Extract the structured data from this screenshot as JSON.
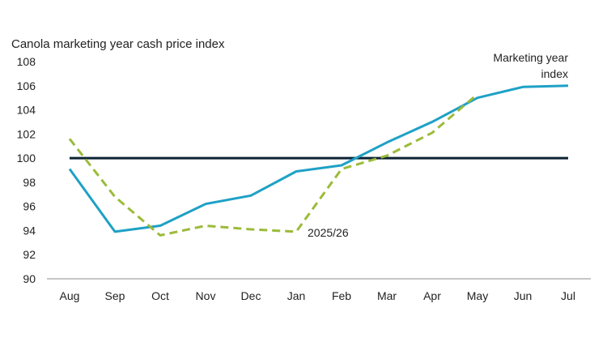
{
  "chart_data": {
    "type": "line",
    "title": "Canola marketing year cash price index",
    "xlabel": "",
    "ylabel": "",
    "categories": [
      "Aug",
      "Sep",
      "Oct",
      "Nov",
      "Dec",
      "Jan",
      "Feb",
      "Mar",
      "Apr",
      "May",
      "Jun",
      "Jul"
    ],
    "ylim": [
      90,
      108
    ],
    "yticks": [
      90,
      92,
      94,
      96,
      98,
      100,
      102,
      104,
      106,
      108
    ],
    "grid": false,
    "series": [
      {
        "name": "Marketing year index",
        "style": "solid",
        "color": "#1ea1c6",
        "values": [
          99.1,
          93.9,
          94.4,
          96.2,
          96.9,
          98.9,
          99.4,
          101.3,
          103.0,
          105.0,
          105.9,
          106.0
        ]
      },
      {
        "name": "2025/26",
        "style": "dashed",
        "color": "#9bbb3a",
        "values": [
          101.6,
          96.8,
          93.6,
          94.4,
          94.1,
          93.9,
          99.1,
          100.2,
          102.1,
          105.3,
          null,
          null
        ]
      }
    ],
    "reference_line": {
      "value": 100,
      "color": "#0b2233"
    },
    "annotations": [
      {
        "text_lines": [
          "Marketing year",
          "index"
        ],
        "series": "Marketing year index"
      },
      {
        "text_lines": [
          "2025/26"
        ],
        "series": "2025/26"
      }
    ]
  }
}
